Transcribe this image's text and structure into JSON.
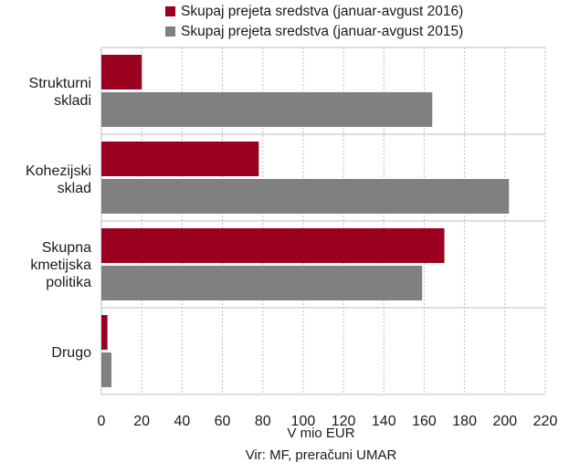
{
  "chart_data": {
    "type": "bar",
    "orientation": "horizontal",
    "categories": [
      "Strukturni\nskladi",
      "Kohezijski\nsklad",
      "Skupna\nkmetijska\npolitika",
      "Drugo"
    ],
    "series": [
      {
        "name": "Skupaj prejeta sredstva (januar-avgust 2016)",
        "color": "#9b0020",
        "values": [
          20,
          78,
          170,
          3
        ]
      },
      {
        "name": "Skupaj prejeta sredstva (januar-avgust 2015)",
        "color": "#808080",
        "values": [
          164,
          202,
          159,
          5
        ]
      }
    ],
    "xlabel": "V mio EUR",
    "xlim": [
      0,
      220
    ],
    "xticks": [
      "0",
      "20",
      "40",
      "60",
      "80",
      "100",
      "120",
      "140",
      "160",
      "180",
      "200",
      "220"
    ],
    "grid": "vertical dashed",
    "legend": "top"
  },
  "source": "Vir: MF, preračuni UMAR"
}
